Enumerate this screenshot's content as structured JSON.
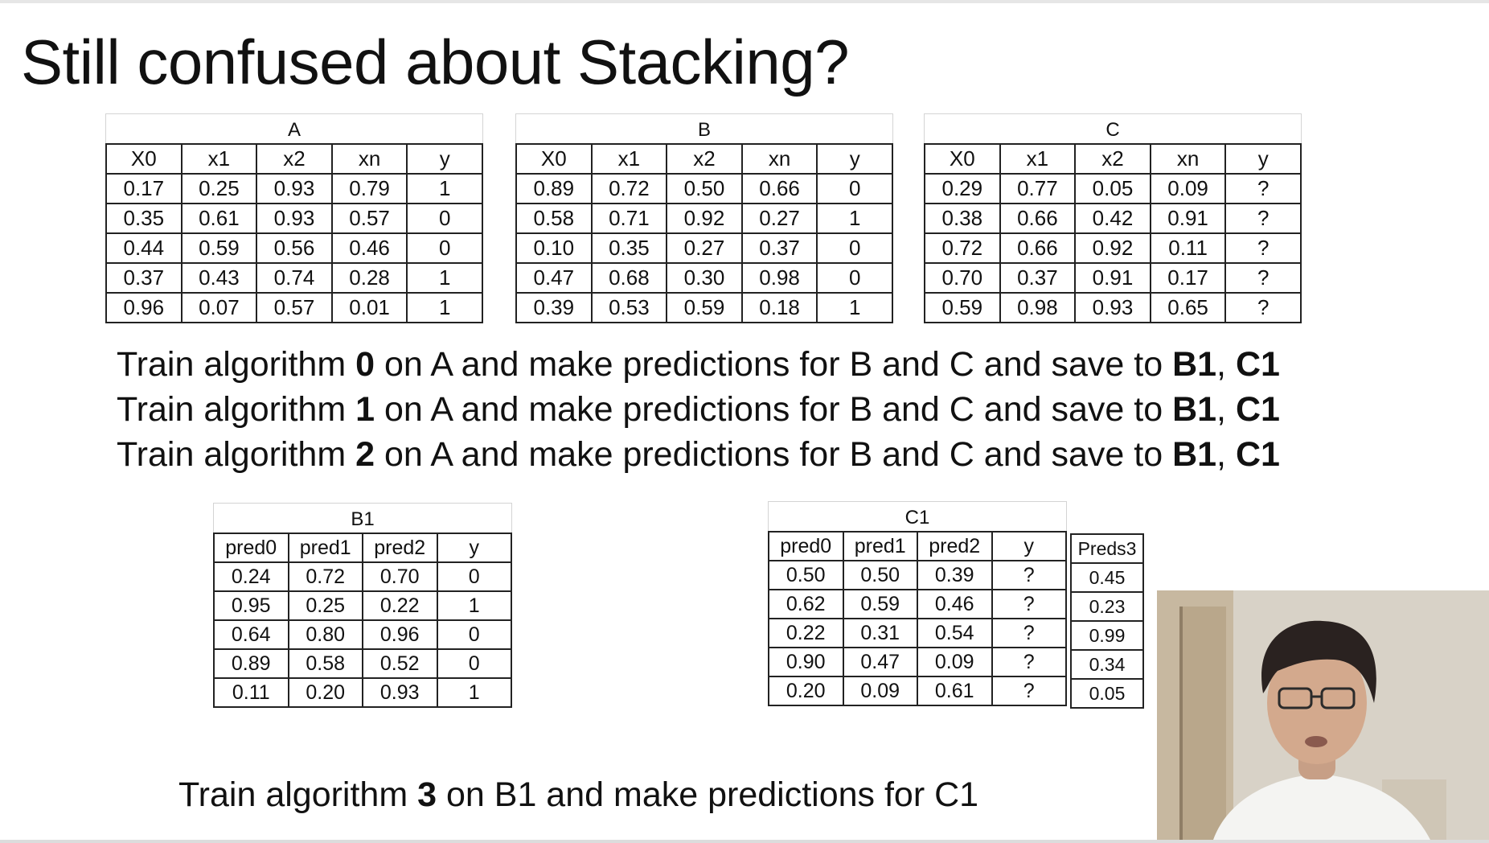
{
  "title": "Still confused about Stacking?",
  "table_a": {
    "caption": "A",
    "headers": [
      "X0",
      "x1",
      "x2",
      "xn",
      "y"
    ],
    "rows": [
      [
        "0.17",
        "0.25",
        "0.93",
        "0.79",
        "1"
      ],
      [
        "0.35",
        "0.61",
        "0.93",
        "0.57",
        "0"
      ],
      [
        "0.44",
        "0.59",
        "0.56",
        "0.46",
        "0"
      ],
      [
        "0.37",
        "0.43",
        "0.74",
        "0.28",
        "1"
      ],
      [
        "0.96",
        "0.07",
        "0.57",
        "0.01",
        "1"
      ]
    ]
  },
  "table_b": {
    "caption": "B",
    "headers": [
      "X0",
      "x1",
      "x2",
      "xn",
      "y"
    ],
    "rows": [
      [
        "0.89",
        "0.72",
        "0.50",
        "0.66",
        "0"
      ],
      [
        "0.58",
        "0.71",
        "0.92",
        "0.27",
        "1"
      ],
      [
        "0.10",
        "0.35",
        "0.27",
        "0.37",
        "0"
      ],
      [
        "0.47",
        "0.68",
        "0.30",
        "0.98",
        "0"
      ],
      [
        "0.39",
        "0.53",
        "0.59",
        "0.18",
        "1"
      ]
    ]
  },
  "table_c": {
    "caption": "C",
    "headers": [
      "X0",
      "x1",
      "x2",
      "xn",
      "y"
    ],
    "rows": [
      [
        "0.29",
        "0.77",
        "0.05",
        "0.09",
        "?"
      ],
      [
        "0.38",
        "0.66",
        "0.42",
        "0.91",
        "?"
      ],
      [
        "0.72",
        "0.66",
        "0.92",
        "0.11",
        "?"
      ],
      [
        "0.70",
        "0.37",
        "0.91",
        "0.17",
        "?"
      ],
      [
        "0.59",
        "0.98",
        "0.93",
        "0.65",
        "?"
      ]
    ]
  },
  "steps": [
    {
      "pre": "Train algorithm ",
      "num": "0",
      "mid": " on A and make predictions for B and C and save to ",
      "b1": "B1",
      "sep": ", ",
      "c1": "C1"
    },
    {
      "pre": "Train algorithm ",
      "num": "1",
      "mid": " on A and make predictions for B and C and save to ",
      "b1": "B1",
      "sep": ", ",
      "c1": "C1"
    },
    {
      "pre": "Train algorithm ",
      "num": "2",
      "mid": " on A and make predictions for B and C and save to ",
      "b1": "B1",
      "sep": ", ",
      "c1": "C1"
    }
  ],
  "table_b1": {
    "caption": "B1",
    "headers": [
      "pred0",
      "pred1",
      "pred2",
      "y"
    ],
    "rows": [
      [
        "0.24",
        "0.72",
        "0.70",
        "0"
      ],
      [
        "0.95",
        "0.25",
        "0.22",
        "1"
      ],
      [
        "0.64",
        "0.80",
        "0.96",
        "0"
      ],
      [
        "0.89",
        "0.58",
        "0.52",
        "0"
      ],
      [
        "0.11",
        "0.20",
        "0.93",
        "1"
      ]
    ]
  },
  "table_c1": {
    "caption": "C1",
    "headers": [
      "pred0",
      "pred1",
      "pred2",
      "y"
    ],
    "rows": [
      [
        "0.50",
        "0.50",
        "0.39",
        "?"
      ],
      [
        "0.62",
        "0.59",
        "0.46",
        "?"
      ],
      [
        "0.22",
        "0.31",
        "0.54",
        "?"
      ],
      [
        "0.90",
        "0.47",
        "0.09",
        "?"
      ],
      [
        "0.20",
        "0.09",
        "0.61",
        "?"
      ]
    ]
  },
  "table_preds3": {
    "header": "Preds3",
    "values": [
      "0.45",
      "0.23",
      "0.99",
      "0.34",
      "0.05"
    ]
  },
  "final": {
    "pre": "Train algorithm ",
    "num": "3",
    "mid": " on B1  and make predictions for C1"
  }
}
